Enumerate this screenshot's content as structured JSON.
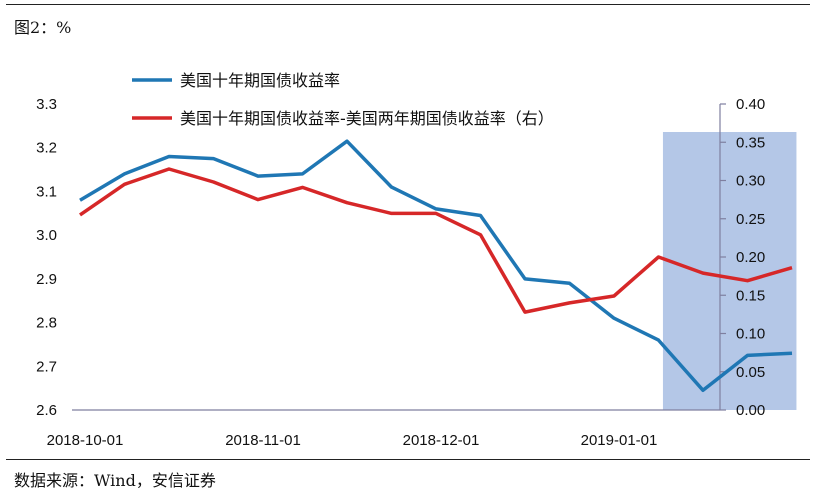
{
  "figure": {
    "title": "图2：%",
    "source": "数据来源：Wind，安信证券"
  },
  "chart_data": {
    "type": "line",
    "title": "",
    "xlabel": "",
    "ylabel": "",
    "x_tick_labels": [
      "2018-10-01",
      "2018-11-01",
      "2018-12-01",
      "2019-01-01"
    ],
    "x_tick_index": [
      0,
      4,
      8,
      12
    ],
    "y_left": {
      "min": 2.6,
      "max": 3.3,
      "ticks": [
        "2.6",
        "2.7",
        "2.8",
        "2.9",
        "3.0",
        "3.1",
        "3.2",
        "3.3"
      ]
    },
    "y_right": {
      "min": 0.0,
      "max": 0.4,
      "ticks": [
        "0.00",
        "0.05",
        "0.10",
        "0.15",
        "0.20",
        "0.25",
        "0.30",
        "0.35",
        "0.40"
      ]
    },
    "legend_position": "top-center",
    "series": [
      {
        "name": "美国十年期国债收益率",
        "axis": "left",
        "color": "#1f77b4",
        "values": [
          3.08,
          3.14,
          3.18,
          3.175,
          3.135,
          3.14,
          3.215,
          3.11,
          3.06,
          3.045,
          2.9,
          2.89,
          2.81,
          2.76,
          2.645,
          2.725,
          2.73
        ]
      },
      {
        "name": "美国十年期国债收益率-美国两年期国债收益率（右）",
        "axis": "right",
        "color": "#d62728",
        "values": [
          0.255,
          0.295,
          0.315,
          0.298,
          0.275,
          0.291,
          0.271,
          0.257,
          0.257,
          0.229,
          0.128,
          0.14,
          0.149,
          0.2,
          0.179,
          0.169,
          0.186
        ]
      }
    ],
    "shaded_region": {
      "from_index": 13.1,
      "to_index": 16.1,
      "color": "#b4c7e7"
    }
  }
}
